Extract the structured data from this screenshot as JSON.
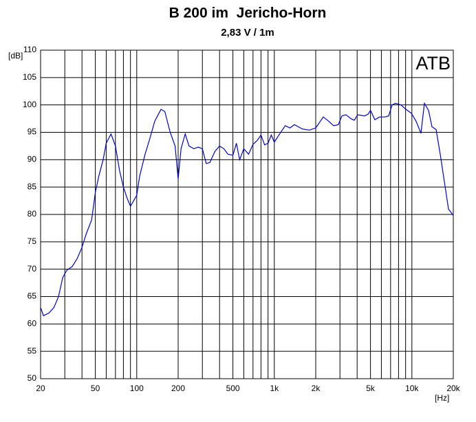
{
  "chart_data": {
    "type": "line",
    "title": "B 200 im  Jericho-Horn",
    "subtitle": "2,83 V / 1m",
    "y_label": "[dB]",
    "x_label": "[Hz]",
    "annotation": "ATB",
    "log_x": true,
    "grid": true,
    "color": "#0000cc",
    "xlim": [
      20,
      20000
    ],
    "ylim": [
      50,
      110
    ],
    "yticks": [
      50,
      55,
      60,
      65,
      70,
      75,
      80,
      85,
      90,
      95,
      100,
      105,
      110
    ],
    "xticks": [
      20,
      50,
      100,
      200,
      500,
      {
        "value": 1000,
        "label": "1k"
      },
      {
        "value": 2000,
        "label": "2k"
      },
      {
        "value": 5000,
        "label": "5k"
      },
      {
        "value": 10000,
        "label": "10k"
      },
      {
        "value": 20000,
        "label": "20k"
      }
    ],
    "xgrid": [
      30,
      40,
      60,
      70,
      80,
      90,
      300,
      400,
      600,
      700,
      800,
      900,
      3000,
      4000,
      6000,
      7000,
      8000,
      9000
    ],
    "x": [
      20,
      21,
      23,
      25,
      27,
      29,
      31,
      34,
      37,
      40,
      43,
      47,
      50,
      53,
      57,
      60,
      65,
      70,
      75,
      80,
      85,
      90,
      95,
      100,
      105,
      115,
      125,
      135,
      150,
      160,
      175,
      190,
      200,
      210,
      225,
      240,
      260,
      280,
      300,
      320,
      340,
      370,
      400,
      430,
      460,
      500,
      530,
      560,
      600,
      650,
      700,
      750,
      800,
      850,
      900,
      950,
      1000,
      1100,
      1200,
      1300,
      1400,
      1600,
      1800,
      2000,
      2270,
      2490,
      2700,
      2920,
      3100,
      3320,
      3600,
      3810,
      4040,
      4530,
      4800,
      5000,
      5380,
      5830,
      6400,
      6780,
      7180,
      7600,
      8340,
      9040,
      9900,
      10740,
      11640,
      12330,
      13220,
      14000,
      15000,
      16070,
      17220,
      18450,
      20000
    ],
    "values": [
      63,
      61.5,
      62,
      63,
      65,
      68.5,
      69.8,
      70.5,
      72,
      74,
      76.5,
      79,
      84,
      87,
      90,
      93,
      94.7,
      92.5,
      88,
      85,
      83,
      81.5,
      82.5,
      83.5,
      87,
      91,
      94,
      97,
      99.2,
      98.8,
      95,
      92.5,
      86.5,
      92,
      94.7,
      92.5,
      92,
      92.3,
      92,
      89.3,
      89.5,
      91.5,
      92.5,
      92,
      91,
      90.8,
      93,
      90,
      92,
      91,
      92.8,
      93.5,
      94.5,
      92.7,
      93,
      94.5,
      93.2,
      94.8,
      96.2,
      95.8,
      96.4,
      95.6,
      95.4,
      95.8,
      97.8,
      97,
      96.2,
      96.4,
      98,
      98.2,
      97.5,
      97.2,
      98.2,
      98,
      98.3,
      99,
      97.3,
      97.8,
      97.8,
      98,
      100,
      100.3,
      100,
      99.2,
      98.5,
      97,
      94.8,
      100.3,
      99,
      96,
      95.5,
      91,
      86,
      81,
      79.8
    ]
  }
}
